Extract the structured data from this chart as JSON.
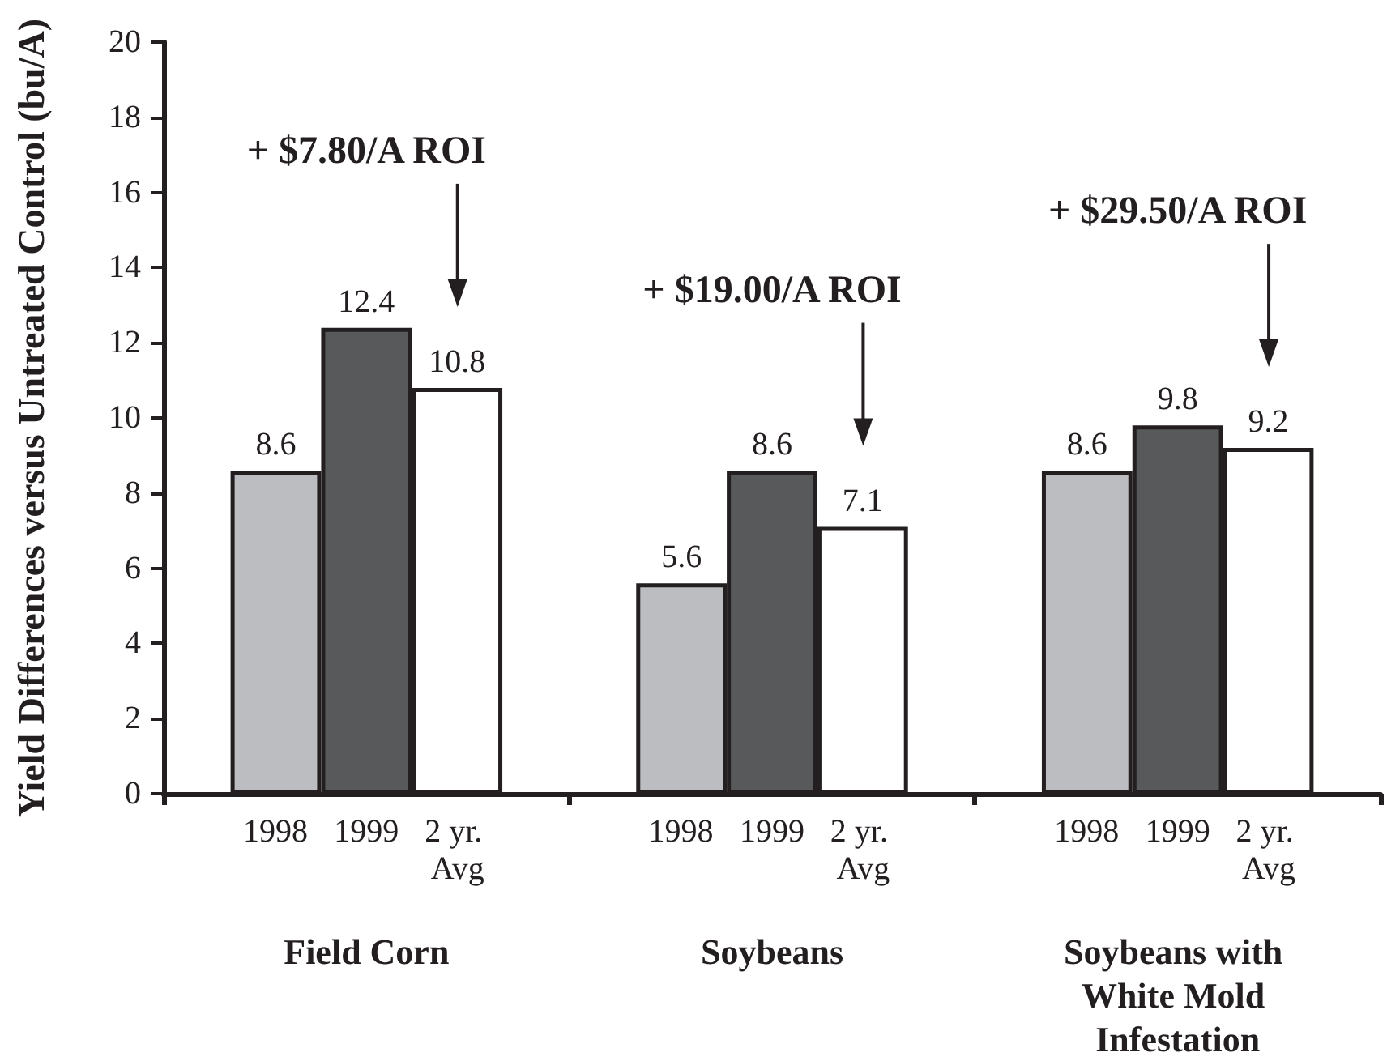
{
  "chart_data": {
    "type": "bar",
    "ylabel": "Yield Differences versus Untreated Control (bu/A)",
    "categories": [
      "Field Corn",
      "Soybeans",
      "Soybeans with White Mold Infestation"
    ],
    "series": [
      {
        "name": "1998",
        "color": "#bcbdc0",
        "values": [
          8.6,
          5.6,
          8.6
        ]
      },
      {
        "name": "1999",
        "color": "#58595b",
        "values": [
          12.4,
          8.6,
          9.8
        ]
      },
      {
        "name": "2 yr. Avg",
        "color": "#ffffff",
        "values": [
          10.8,
          7.1,
          9.2
        ]
      }
    ],
    "ylim": [
      0,
      20
    ],
    "yticks": [
      0,
      2,
      4,
      6,
      8,
      10,
      12,
      14,
      16,
      18,
      20
    ],
    "data_labels": true,
    "annotations": [
      "+ $7.80/A ROI",
      "+ $19.00/A ROI",
      "+ $29.50/A ROI"
    ]
  }
}
